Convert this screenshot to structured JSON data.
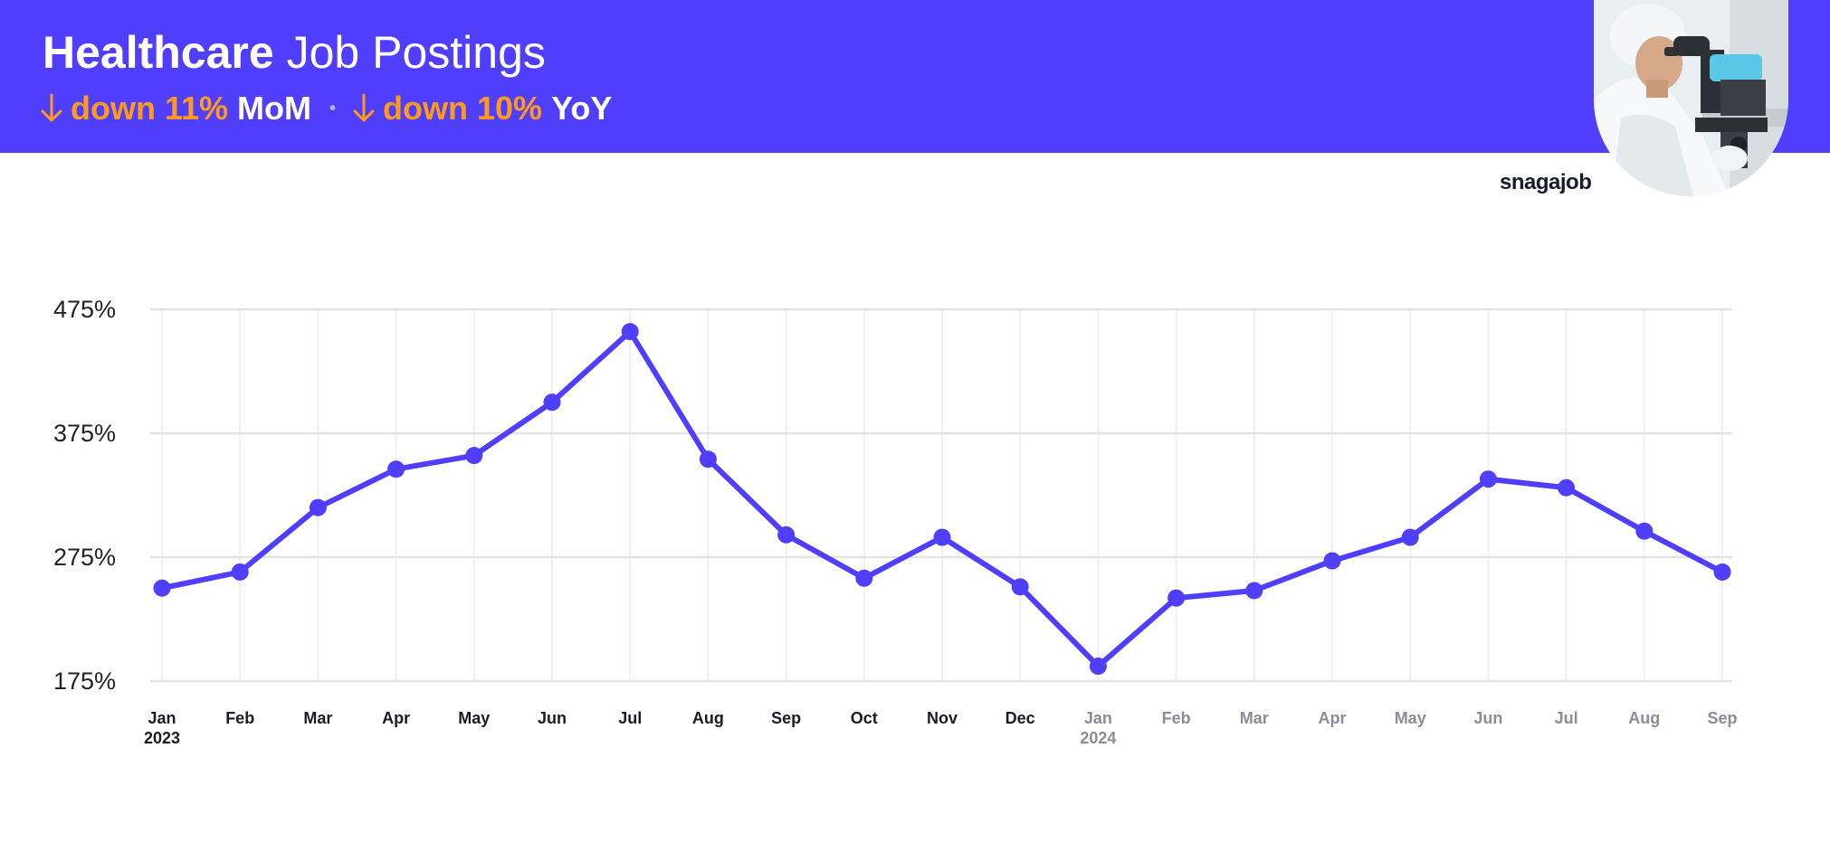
{
  "header": {
    "title_bold": "Healthcare",
    "title_rest": "Job Postings",
    "mom_change": "down 11%",
    "mom_label": "MoM",
    "yoy_change": "down 10%",
    "yoy_label": "YoY",
    "separator": "•",
    "background_color": "#4f3ffd",
    "accent_color": "#ff9a1f",
    "arrow_icon": "arrow-down-icon"
  },
  "brand": {
    "logo_text": "snagajob"
  },
  "photo": {
    "subject": "lab worker at microscope"
  },
  "chart_data": {
    "type": "line",
    "title": "",
    "xlabel": "",
    "ylabel": "",
    "ylim": [
      175,
      475
    ],
    "yticks": [
      "475%",
      "375%",
      "275%",
      "175%"
    ],
    "ytick_values": [
      475,
      375,
      275,
      175
    ],
    "grid": true,
    "line_color": "#4f3ffd",
    "x": [
      {
        "label": "Jan",
        "year": "2023",
        "period": "prior"
      },
      {
        "label": "Feb",
        "period": "prior"
      },
      {
        "label": "Mar",
        "period": "prior"
      },
      {
        "label": "Apr",
        "period": "prior"
      },
      {
        "label": "May",
        "period": "prior"
      },
      {
        "label": "Jun",
        "period": "prior"
      },
      {
        "label": "Jul",
        "period": "prior"
      },
      {
        "label": "Aug",
        "period": "prior"
      },
      {
        "label": "Sep",
        "period": "prior"
      },
      {
        "label": "Oct",
        "period": "prior"
      },
      {
        "label": "Nov",
        "period": "prior"
      },
      {
        "label": "Dec",
        "period": "prior"
      },
      {
        "label": "Jan",
        "year": "2024",
        "period": "current"
      },
      {
        "label": "Feb",
        "period": "current"
      },
      {
        "label": "Mar",
        "period": "current"
      },
      {
        "label": "Apr",
        "period": "current"
      },
      {
        "label": "May",
        "period": "current"
      },
      {
        "label": "Jun",
        "period": "current"
      },
      {
        "label": "Jul",
        "period": "current"
      },
      {
        "label": "Aug",
        "period": "current"
      },
      {
        "label": "Sep",
        "period": "current"
      }
    ],
    "series": [
      {
        "values": [
          250,
          263,
          315,
          346,
          357,
          400,
          457,
          354,
          293,
          258,
          291,
          251,
          187,
          242,
          248,
          272,
          291,
          338,
          331,
          296,
          263
        ]
      }
    ]
  }
}
